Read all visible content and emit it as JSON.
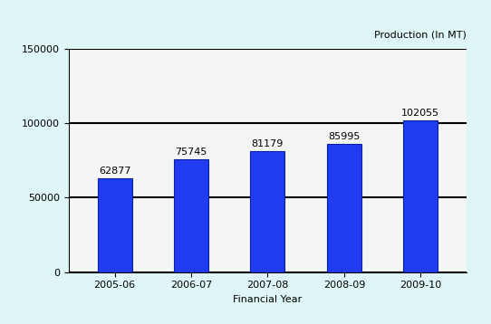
{
  "chart_data": {
    "type": "bar",
    "y_label": "Production (In MT)",
    "x_label": "Financial Year",
    "categories": [
      "2005-06",
      "2006-07",
      "2007-08",
      "2008-09",
      "2009-10"
    ],
    "values": [
      62877,
      75745,
      81179,
      85995,
      102055
    ],
    "color": "#1f3cf0",
    "ylim": [
      0,
      150000
    ],
    "yticks": [
      0,
      50000,
      100000,
      150000
    ],
    "grid": true,
    "data_labels": true
  }
}
